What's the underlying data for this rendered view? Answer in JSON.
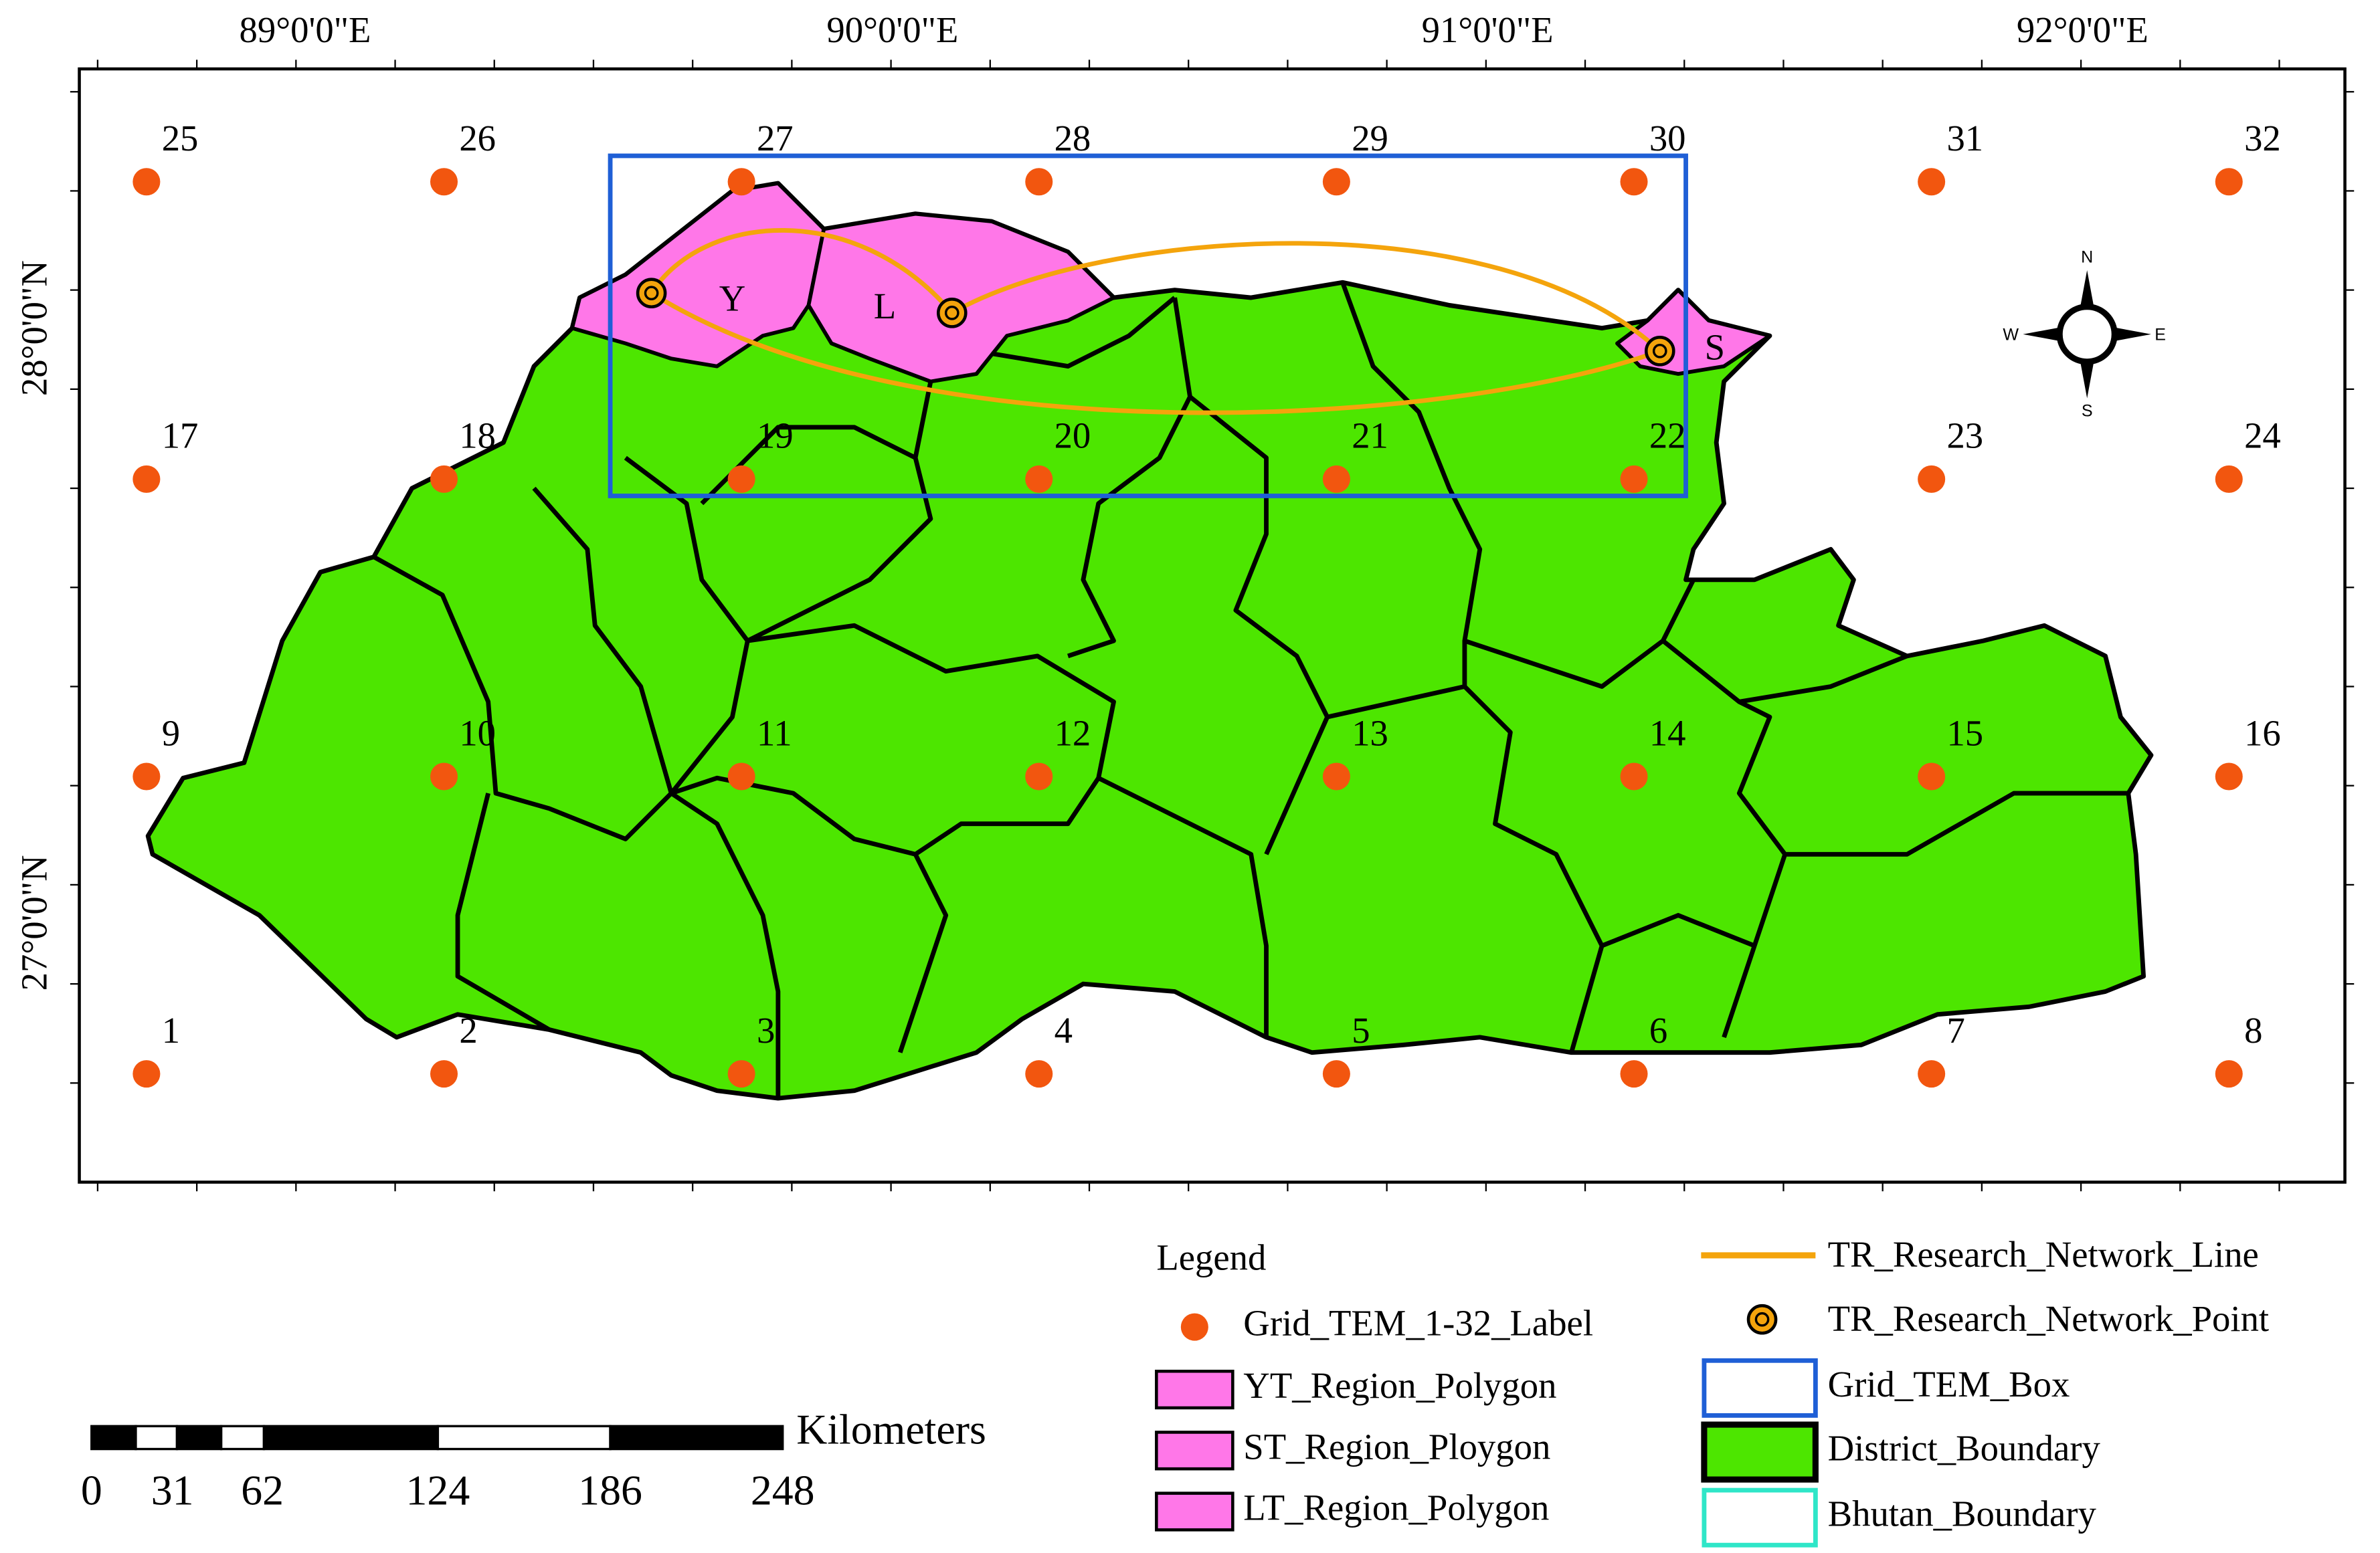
{
  "map": {
    "longitude_labels": [
      "89°0'0\"E",
      "90°0'0\"E",
      "91°0'0\"E",
      "92°0'0\"E"
    ],
    "latitude_labels": [
      "28°0'0\"N",
      "27°0'0\"N"
    ],
    "grid_point_labels": [
      "1",
      "2",
      "3",
      "4",
      "5",
      "6",
      "7",
      "8",
      "9",
      "10",
      "11",
      "12",
      "13",
      "14",
      "15",
      "16",
      "17",
      "18",
      "19",
      "20",
      "21",
      "22",
      "23",
      "24",
      "25",
      "26",
      "27",
      "28",
      "29",
      "30",
      "31",
      "32"
    ],
    "region_labels": [
      "Y",
      "L",
      "S"
    ],
    "compass": [
      "N",
      "E",
      "S",
      "W"
    ]
  },
  "legend": {
    "title": "Legend",
    "items": [
      "Grid_TEM_1-32_Label",
      "YT_Region_Polygon",
      "ST_Region_Ploygon",
      "LT_Region_Polygon",
      "TR_Research_Network_Line",
      "TR_Research_Network_Point",
      "Grid_TEM_Box",
      "District_Boundary",
      "Bhutan_Boundary"
    ]
  },
  "scale_bar": {
    "unit": "Kilometers",
    "labels": [
      "0",
      "31",
      "62",
      "124",
      "186",
      "248"
    ]
  }
}
